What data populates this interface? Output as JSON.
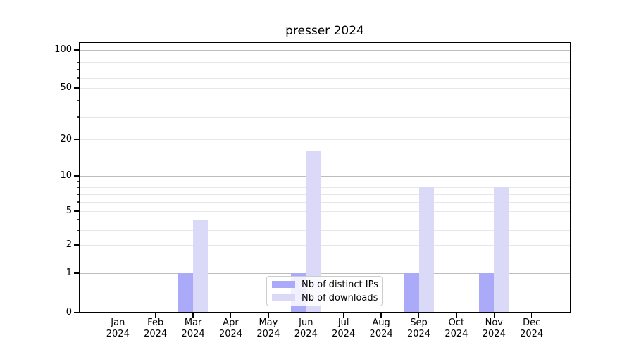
{
  "chart_data": {
    "type": "bar",
    "title": "presser 2024",
    "categories": [
      "Jan",
      "Feb",
      "Mar",
      "Apr",
      "May",
      "Jun",
      "Jul",
      "Aug",
      "Sep",
      "Oct",
      "Nov",
      "Dec"
    ],
    "year": "2024",
    "series": [
      {
        "name": "Nb of distinct IPs",
        "color": "#aaaaf8",
        "values": [
          0,
          0,
          1,
          0,
          0,
          1,
          0,
          0,
          1,
          0,
          1,
          0
        ]
      },
      {
        "name": "Nb of downloads",
        "color": "#dadaf8",
        "values": [
          0,
          0,
          4,
          0,
          0,
          16,
          0,
          0,
          8,
          0,
          8,
          0
        ]
      }
    ],
    "xlabel": "",
    "ylabel": "",
    "y_scale": "symlog",
    "y_ticks": [
      0,
      1,
      2,
      5,
      10,
      20,
      50,
      100
    ],
    "y_minor_ticks": [
      3,
      4,
      6,
      7,
      8,
      9,
      30,
      40,
      60,
      70,
      80,
      90
    ],
    "ylim": [
      0,
      120
    ],
    "grid": "on",
    "legend_position": "lower center",
    "colors": {
      "major_grid": "#bdbdbd",
      "minor_grid": "#e7e7e7",
      "spine": "#000000",
      "legend_border": "#cccccc",
      "legend_background": "rgba(255,255,255,0.82)"
    }
  }
}
